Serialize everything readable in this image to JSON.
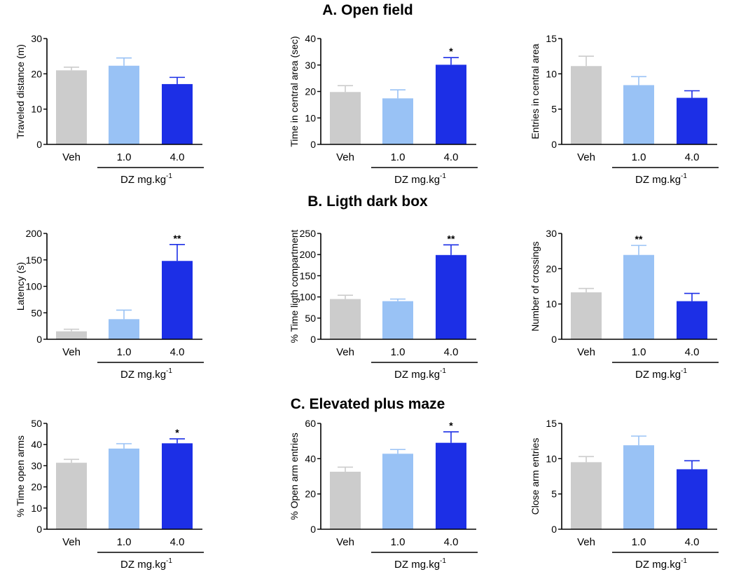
{
  "colors": {
    "Veh": "#cccccc",
    "1.0": "#99c2f5",
    "4.0": "#1c2fe6",
    "axis": "#000000"
  },
  "sections": [
    {
      "id": "A",
      "title": "A. Open field"
    },
    {
      "id": "B",
      "title": "B. Ligth dark box"
    },
    {
      "id": "C",
      "title": "C. Elevated plus maze"
    }
  ],
  "chart_data": [
    {
      "type": "bar",
      "section": "A",
      "categories": [
        "Veh",
        "1.0",
        "4.0"
      ],
      "values": [
        21,
        22.3,
        17.1
      ],
      "errors": [
        0.9,
        2.2,
        1.9
      ],
      "significance": [
        "",
        "",
        ""
      ],
      "ylabel": "Traveled distance (m)",
      "ylim": [
        0,
        30
      ],
      "yticks": [
        0,
        10,
        20,
        30
      ],
      "xgroup_label": "DZ mg.kg",
      "xgroup_sup": "-1"
    },
    {
      "type": "bar",
      "section": "A",
      "categories": [
        "Veh",
        "1.0",
        "4.0"
      ],
      "values": [
        19.8,
        17.4,
        30.1
      ],
      "errors": [
        2.4,
        3.2,
        2.7
      ],
      "significance": [
        "",
        "",
        "*"
      ],
      "ylabel": "Time in central area (sec)",
      "ylim": [
        0,
        40
      ],
      "yticks": [
        0,
        10,
        20,
        30,
        40
      ],
      "xgroup_label": "DZ mg.kg",
      "xgroup_sup": "-1"
    },
    {
      "type": "bar",
      "section": "A",
      "categories": [
        "Veh",
        "1.0",
        "4.0"
      ],
      "values": [
        11.1,
        8.4,
        6.6
      ],
      "errors": [
        1.4,
        1.2,
        1.0
      ],
      "significance": [
        "",
        "",
        ""
      ],
      "ylabel": "Entries in central area",
      "ylim": [
        0,
        15
      ],
      "yticks": [
        0,
        5,
        10,
        15
      ],
      "xgroup_label": "DZ mg.kg",
      "xgroup_sup": "-1"
    },
    {
      "type": "bar",
      "section": "B",
      "categories": [
        "Veh",
        "1.0",
        "4.0"
      ],
      "values": [
        15,
        38,
        148
      ],
      "errors": [
        4,
        17,
        31
      ],
      "significance": [
        "",
        "",
        "**"
      ],
      "ylabel": "Latency (s)",
      "ylim": [
        0,
        200
      ],
      "yticks": [
        0,
        50,
        100,
        150,
        200
      ],
      "xgroup_label": "DZ mg.kg",
      "xgroup_sup": "-1"
    },
    {
      "type": "bar",
      "section": "B",
      "categories": [
        "Veh",
        "1.0",
        "4.0"
      ],
      "values": [
        95,
        90,
        199
      ],
      "errors": [
        9,
        5,
        24
      ],
      "significance": [
        "",
        "",
        "**"
      ],
      "ylabel": "% Time  ligth compartment",
      "ylim": [
        0,
        250
      ],
      "yticks": [
        0,
        50,
        100,
        150,
        200,
        250
      ],
      "xgroup_label": "DZ mg.kg",
      "xgroup_sup": "-1"
    },
    {
      "type": "bar",
      "section": "B",
      "categories": [
        "Veh",
        "1.0",
        "4.0"
      ],
      "values": [
        13.3,
        23.9,
        10.8
      ],
      "errors": [
        1.1,
        2.7,
        2.2
      ],
      "significance": [
        "",
        "**",
        ""
      ],
      "ylabel": "Number of crossings",
      "ylim": [
        0,
        30
      ],
      "yticks": [
        0,
        10,
        20,
        30
      ],
      "xgroup_label": "DZ mg.kg",
      "xgroup_sup": "-1"
    },
    {
      "type": "bar",
      "section": "C",
      "categories": [
        "Veh",
        "1.0",
        "4.0"
      ],
      "values": [
        31.4,
        38.1,
        40.6
      ],
      "errors": [
        1.6,
        2.3,
        2.1
      ],
      "significance": [
        "",
        "",
        "*"
      ],
      "ylabel": "% Time open arms",
      "ylim": [
        0,
        50
      ],
      "yticks": [
        0,
        10,
        20,
        30,
        40,
        50
      ],
      "xgroup_label": "DZ mg.kg",
      "xgroup_sup": "-1"
    },
    {
      "type": "bar",
      "section": "C",
      "categories": [
        "Veh",
        "1.0",
        "4.0"
      ],
      "values": [
        32.6,
        42.8,
        49
      ],
      "errors": [
        2.6,
        2.4,
        6.2
      ],
      "significance": [
        "",
        "",
        "*"
      ],
      "ylabel": "% Open arm entries",
      "ylim": [
        0,
        60
      ],
      "yticks": [
        0,
        20,
        40,
        60
      ],
      "xgroup_label": "DZ mg.kg",
      "xgroup_sup": "-1"
    },
    {
      "type": "bar",
      "section": "C",
      "categories": [
        "Veh",
        "1.0",
        "4.0"
      ],
      "values": [
        9.5,
        11.9,
        8.5
      ],
      "errors": [
        0.8,
        1.3,
        1.2
      ],
      "significance": [
        "",
        "",
        ""
      ],
      "ylabel": "Close arm entries",
      "ylim": [
        0,
        15
      ],
      "yticks": [
        0,
        5,
        10,
        15
      ],
      "xgroup_label": "DZ mg.kg",
      "xgroup_sup": "-1"
    }
  ]
}
